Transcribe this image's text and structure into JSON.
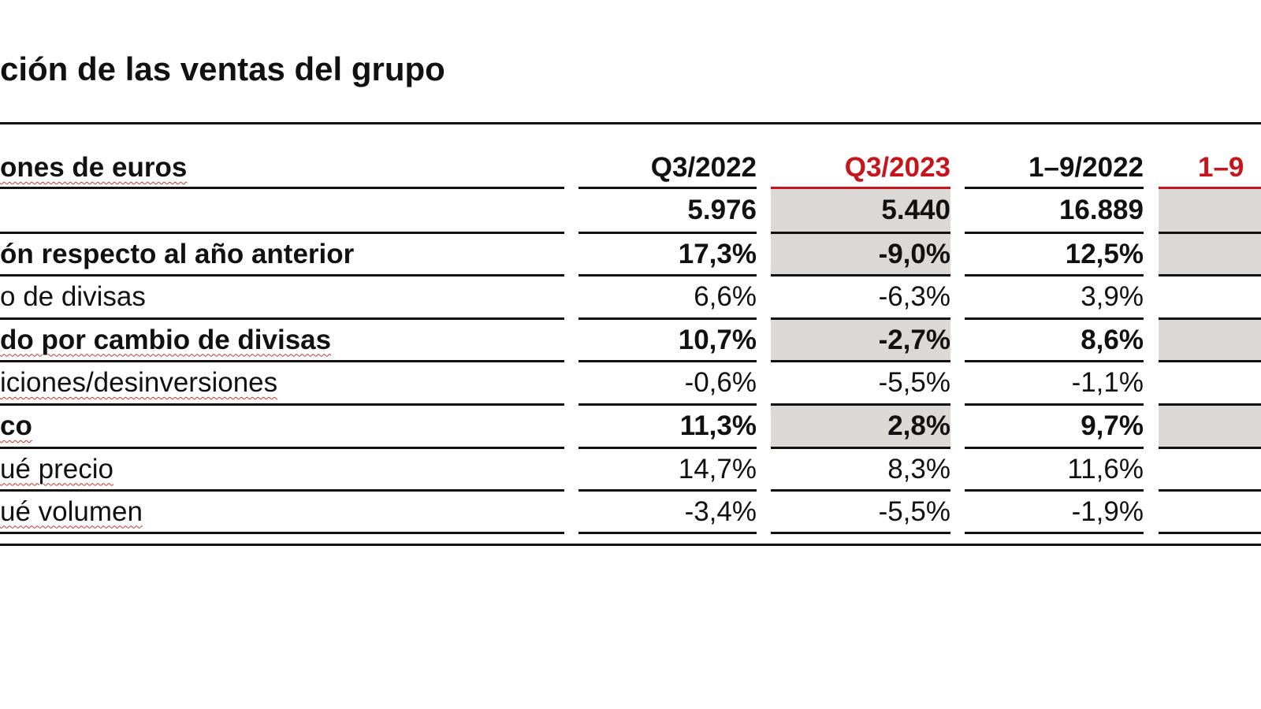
{
  "title": "ción de las ventas del grupo",
  "header": {
    "label": "ones de euros",
    "columns": [
      "Q3/2022",
      "Q3/2023",
      "1–9/2022",
      "1–9"
    ]
  },
  "colors": {
    "accent": "#c4161c",
    "highlight": "#dcd8d6"
  },
  "rows": [
    {
      "label": "",
      "bold": true,
      "values": [
        "5.976",
        "5.440",
        "16.889",
        ""
      ]
    },
    {
      "label": "ón respecto al año anterior",
      "bold": true,
      "values": [
        "17,3%",
        "-9,0%",
        "12,5%",
        ""
      ]
    },
    {
      "label": "o de divisas",
      "bold": false,
      "values": [
        "6,6%",
        "-6,3%",
        "3,9%",
        ""
      ]
    },
    {
      "label": "do por cambio de divisas",
      "bold": true,
      "values": [
        "10,7%",
        "-2,7%",
        "8,6%",
        ""
      ]
    },
    {
      "label": "iciones/desinversiones",
      "bold": false,
      "values": [
        "-0,6%",
        "-5,5%",
        "-1,1%",
        ""
      ]
    },
    {
      "label": "co",
      "bold": true,
      "values": [
        "11,3%",
        "2,8%",
        "9,7%",
        ""
      ]
    },
    {
      "label": "ué precio",
      "bold": false,
      "values": [
        "14,7%",
        "8,3%",
        "11,6%",
        ""
      ]
    },
    {
      "label": "ué volumen",
      "bold": false,
      "values": [
        "-3,4%",
        "-5,5%",
        "-1,9%",
        ""
      ]
    }
  ]
}
